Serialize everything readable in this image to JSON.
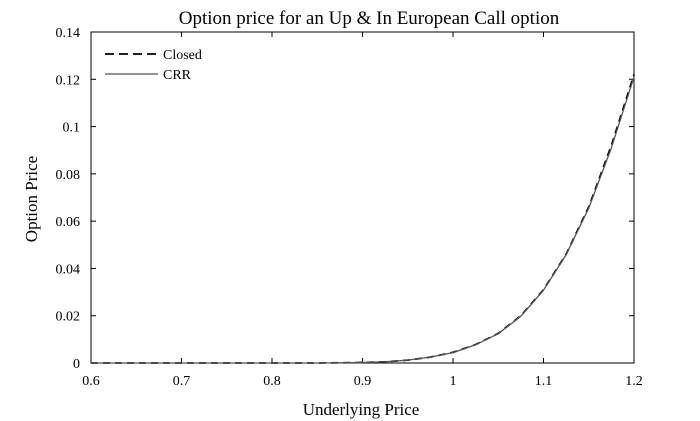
{
  "chart_data": {
    "type": "line",
    "title": "Option price for an Up & In European Call option",
    "xlabel": "Underlying Price",
    "ylabel": "Option Price",
    "xlim": [
      0.6,
      1.2
    ],
    "ylim": [
      0,
      0.14
    ],
    "xticks": [
      0.6,
      0.7,
      0.8,
      0.9,
      1.0,
      1.1,
      1.2
    ],
    "xtick_labels": [
      "0.6",
      "0.7",
      "0.8",
      "0.9",
      "1",
      "1.1",
      "1.2"
    ],
    "yticks": [
      0,
      0.02,
      0.04,
      0.06,
      0.08,
      0.1,
      0.12,
      0.14
    ],
    "ytick_labels": [
      "0",
      "0.02",
      "0.04",
      "0.06",
      "0.08",
      "0.1",
      "0.12",
      "0.14"
    ],
    "grid": false,
    "legend_position": "top-left",
    "series": [
      {
        "name": "Closed",
        "style": "dashed",
        "color": "#000000",
        "x": [
          0.6,
          0.7,
          0.8,
          0.85,
          0.9,
          0.925,
          0.95,
          0.975,
          1.0,
          1.025,
          1.05,
          1.075,
          1.1,
          1.125,
          1.15,
          1.175,
          1.2
        ],
        "y": [
          0,
          0,
          0,
          0,
          0.0002,
          0.0005,
          0.0012,
          0.0025,
          0.0045,
          0.0078,
          0.0125,
          0.02,
          0.031,
          0.046,
          0.066,
          0.092,
          0.122
        ]
      },
      {
        "name": "CRR",
        "style": "solid",
        "color": "#555555",
        "x": [
          0.6,
          0.7,
          0.8,
          0.85,
          0.9,
          0.925,
          0.95,
          0.975,
          1.0,
          1.025,
          1.05,
          1.075,
          1.1,
          1.125,
          1.15,
          1.175,
          1.2
        ],
        "y": [
          0,
          0,
          0,
          0,
          0.0002,
          0.0005,
          0.0012,
          0.0025,
          0.0044,
          0.0077,
          0.0124,
          0.0198,
          0.0308,
          0.0458,
          0.0655,
          0.091,
          0.121
        ]
      }
    ]
  }
}
